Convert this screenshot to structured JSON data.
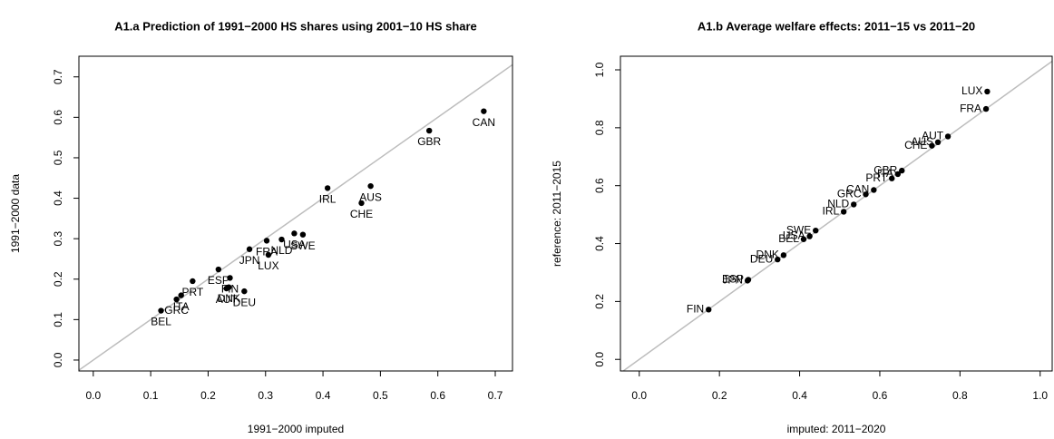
{
  "chart_data": [
    {
      "type": "scatter",
      "title": "A1.a Prediction of 1991−2000 HS shares using 2001−10 HS share",
      "xlabel": "1991−2000 imputed",
      "ylabel": "1991−2000 data",
      "xlim": [
        -0.025,
        0.73
      ],
      "ylim": [
        -0.027,
        0.751
      ],
      "xticks": [
        {
          "value": 0,
          "label": "0.0"
        },
        0.1,
        0.2,
        0.3,
        0.4,
        0.5,
        0.6,
        0.7
      ],
      "yticks": [
        {
          "value": 0,
          "label": "0.0"
        },
        0.1,
        0.2,
        0.3,
        0.4,
        0.5,
        0.6,
        0.7
      ],
      "label_position": "below",
      "color": "#000000",
      "labels": [
        "CAN",
        "GBR",
        "IRL",
        "AUS",
        "CHE",
        "USA",
        "SWE",
        "NLD",
        "FRA",
        "LUX",
        "JPN",
        "ESP",
        "FIN",
        "DNK",
        "AUT",
        "DEU",
        "PRT",
        "GRC",
        "ITA",
        "BEL"
      ],
      "x": [
        0.68,
        0.585,
        0.408,
        0.483,
        0.467,
        0.35,
        0.365,
        0.328,
        0.302,
        0.305,
        0.272,
        0.218,
        0.238,
        0.236,
        0.232,
        0.263,
        0.173,
        0.145,
        0.153,
        0.118
      ],
      "values": [
        0.615,
        0.567,
        0.425,
        0.43,
        0.388,
        0.313,
        0.31,
        0.298,
        0.295,
        0.26,
        0.274,
        0.224,
        0.203,
        0.18,
        0.177,
        0.17,
        0.195,
        0.15,
        0.16,
        0.122
      ]
    },
    {
      "type": "scatter",
      "title": "A1.b Average welfare effects: 2011−15 vs 2011−20",
      "xlabel": "imputed: 2011−2020",
      "ylabel": "reference: 2011−2015",
      "xlim": [
        -0.047,
        1.03
      ],
      "ylim": [
        -0.04,
        1.047
      ],
      "xticks": [
        {
          "value": 0,
          "label": "0.0"
        },
        0.2,
        0.4,
        0.6,
        0.8,
        {
          "value": 1,
          "label": "1.0"
        }
      ],
      "yticks": [
        {
          "value": 0,
          "label": "0.0"
        },
        0.2,
        0.4,
        0.6,
        0.8,
        {
          "value": 1,
          "label": "1.0"
        }
      ],
      "label_position": "left",
      "color": "#000000",
      "labels": [
        "FIN",
        "JPN",
        "ESP",
        "DEU",
        "DNK",
        "BEL",
        "USA",
        "SWE",
        "IRL",
        "NLD",
        "GRC",
        "CAN",
        "PRT",
        "ITA",
        "GBR",
        "CHE",
        "AUS",
        "AUT",
        "FRA",
        "LUX"
      ],
      "x": [
        0.173,
        0.27,
        0.272,
        0.345,
        0.36,
        0.41,
        0.425,
        0.44,
        0.51,
        0.535,
        0.565,
        0.585,
        0.63,
        0.645,
        0.655,
        0.73,
        0.745,
        0.77,
        0.865,
        0.868
      ],
      "values": [
        0.172,
        0.272,
        0.275,
        0.345,
        0.36,
        0.415,
        0.425,
        0.445,
        0.51,
        0.535,
        0.57,
        0.585,
        0.625,
        0.64,
        0.652,
        0.738,
        0.75,
        0.77,
        0.865,
        0.925
      ]
    }
  ]
}
